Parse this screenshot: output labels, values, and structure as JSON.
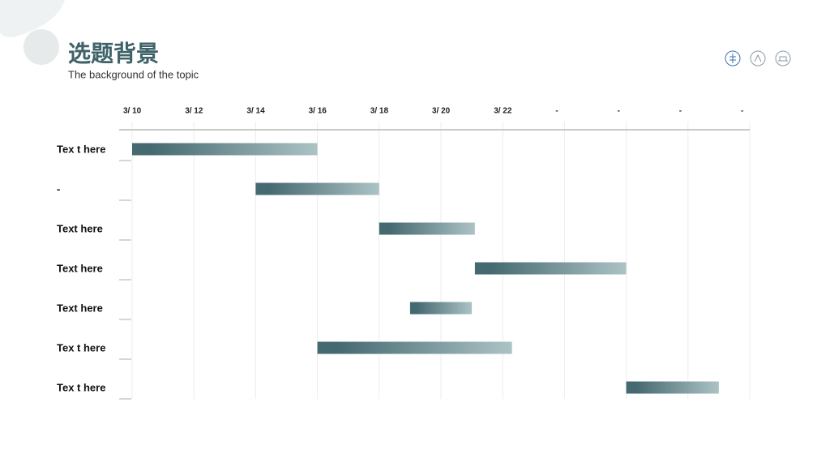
{
  "header": {
    "title": "选题背景",
    "subtitle": "The  background of the topic"
  },
  "chart_data": {
    "type": "gantt",
    "categories": [
      "Tex t here",
      "-",
      "Text  here",
      "Text  here",
      "Text  here",
      "Tex t here",
      "Tex t here"
    ],
    "starts": [
      10,
      14,
      18,
      21.1,
      19,
      16,
      26
    ],
    "ends": [
      16,
      18,
      21.1,
      26,
      21,
      22.3,
      29
    ],
    "color": "#456970",
    "color_end": "#acc3c5",
    "xlim": [
      10,
      30
    ],
    "xticks": [
      {
        "value": 10,
        "label": "3/ 10"
      },
      {
        "value": 12,
        "label": "3/ 12"
      },
      {
        "value": 14,
        "label": "3/ 14"
      },
      {
        "value": 16,
        "label": "3/ 16"
      },
      {
        "value": 18,
        "label": "3/ 18"
      },
      {
        "value": 20,
        "label": "3/ 20"
      },
      {
        "value": 22,
        "label": "3/ 22"
      },
      {
        "value": 24,
        "label": "-"
      },
      {
        "value": 26,
        "label": "-"
      },
      {
        "value": 28,
        "label": "-"
      },
      {
        "value": 30,
        "label": "-"
      }
    ],
    "grid": true
  }
}
